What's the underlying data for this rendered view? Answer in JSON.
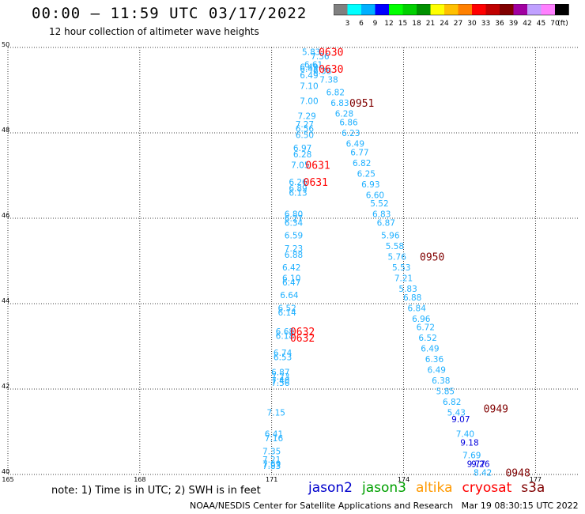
{
  "header": {
    "title": "00:00 – 11:59 UTC 03/17/2022",
    "subtitle": "12 hour collection of altimeter wave heights"
  },
  "color_scale": {
    "labels": [
      "3",
      "6",
      "9",
      "12",
      "15",
      "18",
      "21",
      "24",
      "27",
      "30",
      "33",
      "36",
      "39",
      "42",
      "45",
      "70"
    ],
    "unit_label": "(ft)",
    "colors": [
      "#808080",
      "#00ffff",
      "#00b0ff",
      "#0000ff",
      "#00ff00",
      "#00d000",
      "#009000",
      "#ffff00",
      "#ffc000",
      "#ff8000",
      "#ff0000",
      "#c00000",
      "#800000",
      "#a000a0",
      "#c0a0ff",
      "#ff80ff",
      "#000000"
    ]
  },
  "footer": {
    "note": "note: 1) Time is in UTC; 2) SWH is in feet",
    "credit": "NOAA/NESDIS Center for Satellite Applications and Research",
    "timestamp": "Mar 19 08:30:15 UTC 2022",
    "satellites": [
      {
        "name": "jason2",
        "color": "#0000cc"
      },
      {
        "name": "jason3",
        "color": "#00a000"
      },
      {
        "name": "altika",
        "color": "#ff9900"
      },
      {
        "name": "cryosat",
        "color": "#ff0000"
      },
      {
        "name": "s3a",
        "color": "#800000"
      }
    ]
  },
  "chart_data": {
    "type": "scatter",
    "title": "00:00 – 11:59 UTC 03/17/2022",
    "xlim": [
      165,
      178
    ],
    "ylim": [
      40,
      50
    ],
    "x_ticks": [
      165,
      168,
      171,
      174,
      177
    ],
    "y_ticks": [
      40,
      42,
      44,
      46,
      48,
      50
    ],
    "grid": true,
    "series": [
      {
        "color": "#20b0ff",
        "points": [
          {
            "x": 171.9,
            "y": 49.9,
            "v": "5.83"
          },
          {
            "x": 172.1,
            "y": 49.8,
            "v": "7.36"
          },
          {
            "x": 171.95,
            "y": 49.6,
            "v": "6.61"
          },
          {
            "x": 171.85,
            "y": 49.55,
            "v": "6.49"
          },
          {
            "x": 171.85,
            "y": 49.5,
            "v": "6.45"
          },
          {
            "x": 172.15,
            "y": 49.45,
            "v": "6.38"
          },
          {
            "x": 171.85,
            "y": 49.35,
            "v": "6.49"
          },
          {
            "x": 172.3,
            "y": 49.25,
            "v": "7.38"
          },
          {
            "x": 171.85,
            "y": 49.1,
            "v": "7.10"
          },
          {
            "x": 172.45,
            "y": 48.95,
            "v": "6.82"
          },
          {
            "x": 171.85,
            "y": 48.75,
            "v": "7.00"
          },
          {
            "x": 172.55,
            "y": 48.7,
            "v": "6.83"
          },
          {
            "x": 172.65,
            "y": 48.45,
            "v": "6.28"
          },
          {
            "x": 171.8,
            "y": 48.4,
            "v": "7.29"
          },
          {
            "x": 172.75,
            "y": 48.25,
            "v": "6.86"
          },
          {
            "x": 171.75,
            "y": 48.2,
            "v": "7.27"
          },
          {
            "x": 171.75,
            "y": 48.1,
            "v": "6.56"
          },
          {
            "x": 172.8,
            "y": 48.0,
            "v": "6.23"
          },
          {
            "x": 171.75,
            "y": 47.95,
            "v": "6.50"
          },
          {
            "x": 172.9,
            "y": 47.75,
            "v": "6.49"
          },
          {
            "x": 171.7,
            "y": 47.65,
            "v": "6.97"
          },
          {
            "x": 173.0,
            "y": 47.55,
            "v": "6.77"
          },
          {
            "x": 171.7,
            "y": 47.5,
            "v": "6.28"
          },
          {
            "x": 173.05,
            "y": 47.3,
            "v": "6.82"
          },
          {
            "x": 171.65,
            "y": 47.25,
            "v": "7.05"
          },
          {
            "x": 173.15,
            "y": 47.05,
            "v": "6.25"
          },
          {
            "x": 171.6,
            "y": 46.85,
            "v": "6.26"
          },
          {
            "x": 173.25,
            "y": 46.8,
            "v": "6.93"
          },
          {
            "x": 171.6,
            "y": 46.7,
            "v": "6.89"
          },
          {
            "x": 171.6,
            "y": 46.6,
            "v": "6.13"
          },
          {
            "x": 173.35,
            "y": 46.55,
            "v": "6.60"
          },
          {
            "x": 173.45,
            "y": 46.35,
            "v": "5.52"
          },
          {
            "x": 173.5,
            "y": 46.1,
            "v": "6.83"
          },
          {
            "x": 171.5,
            "y": 46.1,
            "v": "6.80"
          },
          {
            "x": 171.5,
            "y": 46.0,
            "v": "6.27"
          },
          {
            "x": 173.6,
            "y": 45.9,
            "v": "6.87"
          },
          {
            "x": 171.5,
            "y": 45.9,
            "v": "6.34"
          },
          {
            "x": 173.7,
            "y": 45.6,
            "v": "5.96"
          },
          {
            "x": 171.5,
            "y": 45.6,
            "v": "6.59"
          },
          {
            "x": 173.8,
            "y": 45.35,
            "v": "5.58"
          },
          {
            "x": 171.5,
            "y": 45.3,
            "v": "7.23"
          },
          {
            "x": 173.85,
            "y": 45.1,
            "v": "5.76"
          },
          {
            "x": 171.5,
            "y": 45.15,
            "v": "6.88"
          },
          {
            "x": 173.95,
            "y": 44.85,
            "v": "5.53"
          },
          {
            "x": 171.45,
            "y": 44.85,
            "v": "6.42"
          },
          {
            "x": 174.0,
            "y": 44.6,
            "v": "7.21"
          },
          {
            "x": 171.45,
            "y": 44.6,
            "v": "6.10"
          },
          {
            "x": 171.45,
            "y": 44.5,
            "v": "6.47"
          },
          {
            "x": 174.1,
            "y": 44.35,
            "v": "5.83"
          },
          {
            "x": 174.2,
            "y": 44.15,
            "v": "6.88"
          },
          {
            "x": 171.4,
            "y": 44.2,
            "v": "6.64"
          },
          {
            "x": 174.3,
            "y": 43.9,
            "v": "6.84"
          },
          {
            "x": 171.35,
            "y": 43.9,
            "v": "6.52"
          },
          {
            "x": 171.35,
            "y": 43.8,
            "v": "6.14"
          },
          {
            "x": 174.4,
            "y": 43.65,
            "v": "6.96"
          },
          {
            "x": 174.5,
            "y": 43.45,
            "v": "6.72"
          },
          {
            "x": 171.3,
            "y": 43.35,
            "v": "6.68"
          },
          {
            "x": 174.55,
            "y": 43.2,
            "v": "6.52"
          },
          {
            "x": 171.3,
            "y": 43.25,
            "v": "6.18"
          },
          {
            "x": 174.6,
            "y": 42.95,
            "v": "6.49"
          },
          {
            "x": 171.25,
            "y": 42.85,
            "v": "6.74"
          },
          {
            "x": 171.25,
            "y": 42.75,
            "v": "6.53"
          },
          {
            "x": 174.7,
            "y": 42.7,
            "v": "6.36"
          },
          {
            "x": 174.75,
            "y": 42.45,
            "v": "6.49"
          },
          {
            "x": 171.2,
            "y": 42.4,
            "v": "6.87"
          },
          {
            "x": 171.2,
            "y": 42.3,
            "v": "7.23"
          },
          {
            "x": 174.85,
            "y": 42.2,
            "v": "6.38"
          },
          {
            "x": 171.2,
            "y": 42.2,
            "v": "7.40"
          },
          {
            "x": 171.2,
            "y": 42.15,
            "v": "7.56"
          },
          {
            "x": 174.95,
            "y": 41.95,
            "v": "5.85"
          },
          {
            "x": 175.1,
            "y": 41.7,
            "v": "6.82"
          },
          {
            "x": 175.2,
            "y": 41.45,
            "v": "5.43"
          },
          {
            "x": 171.1,
            "y": 41.45,
            "v": "7.15"
          },
          {
            "x": 175.4,
            "y": 40.95,
            "v": "7.40"
          },
          {
            "x": 171.05,
            "y": 40.95,
            "v": "6.41"
          },
          {
            "x": 171.05,
            "y": 40.85,
            "v": "7.16"
          },
          {
            "x": 175.55,
            "y": 40.45,
            "v": "7.69"
          },
          {
            "x": 171.0,
            "y": 40.55,
            "v": "7.35"
          },
          {
            "x": 171.0,
            "y": 40.35,
            "v": "7.21"
          },
          {
            "x": 171.0,
            "y": 40.25,
            "v": "7.69"
          },
          {
            "x": 171.0,
            "y": 40.2,
            "v": "7.83"
          },
          {
            "x": 175.8,
            "y": 40.05,
            "v": "8.42"
          }
        ]
      },
      {
        "color": "#0000dd",
        "points": [
          {
            "x": 175.3,
            "y": 41.3,
            "v": "9.07"
          },
          {
            "x": 175.5,
            "y": 40.75,
            "v": "9.18"
          },
          {
            "x": 175.65,
            "y": 40.25,
            "v": "9.77"
          },
          {
            "x": 175.75,
            "y": 40.25,
            "v": "9.26"
          }
        ]
      }
    ],
    "time_labels": [
      {
        "x": 172.35,
        "y": 49.9,
        "v": "0630",
        "color": "#ff0000"
      },
      {
        "x": 172.35,
        "y": 49.5,
        "v": "0630",
        "color": "#ff0000"
      },
      {
        "x": 173.05,
        "y": 48.7,
        "v": "0951",
        "color": "#800000"
      },
      {
        "x": 172.05,
        "y": 47.25,
        "v": "0631",
        "color": "#ff0000"
      },
      {
        "x": 172.0,
        "y": 46.85,
        "v": "0631",
        "color": "#ff0000"
      },
      {
        "x": 174.65,
        "y": 45.1,
        "v": "0950",
        "color": "#800000"
      },
      {
        "x": 171.7,
        "y": 43.35,
        "v": "0632",
        "color": "#ff0000"
      },
      {
        "x": 171.7,
        "y": 43.2,
        "v": "0632",
        "color": "#ff0000"
      },
      {
        "x": 176.1,
        "y": 41.55,
        "v": "0949",
        "color": "#800000"
      },
      {
        "x": 176.6,
        "y": 40.05,
        "v": "0948",
        "color": "#800000"
      }
    ]
  }
}
